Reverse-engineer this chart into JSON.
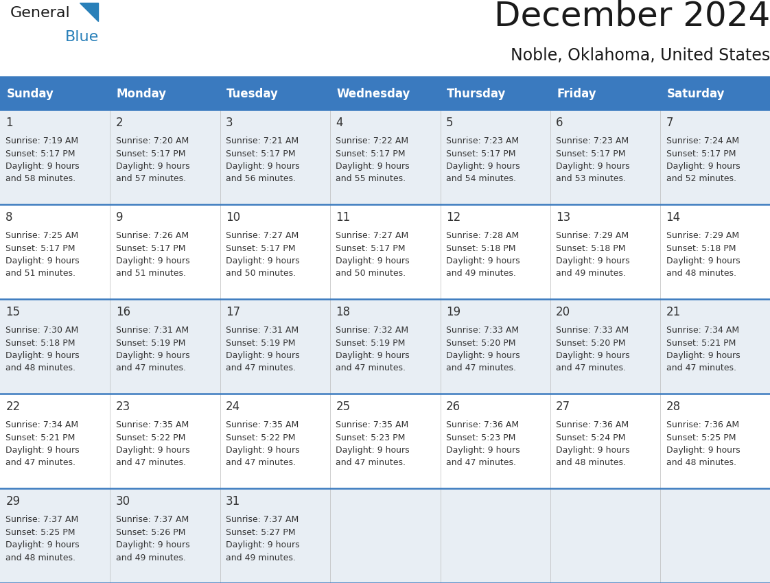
{
  "title": "December 2024",
  "subtitle": "Noble, Oklahoma, United States",
  "header_color": "#3a7abf",
  "header_text_color": "#ffffff",
  "cell_bg_even": "#e8eef4",
  "cell_bg_odd": "#ffffff",
  "border_color": "#3a7abf",
  "text_color": "#333333",
  "days_of_week": [
    "Sunday",
    "Monday",
    "Tuesday",
    "Wednesday",
    "Thursday",
    "Friday",
    "Saturday"
  ],
  "weeks": [
    [
      {
        "day": "1",
        "sunrise": "7:19 AM",
        "sunset": "5:17 PM",
        "daylight_h": "9 hours",
        "daylight_m": "and 58 minutes."
      },
      {
        "day": "2",
        "sunrise": "7:20 AM",
        "sunset": "5:17 PM",
        "daylight_h": "9 hours",
        "daylight_m": "and 57 minutes."
      },
      {
        "day": "3",
        "sunrise": "7:21 AM",
        "sunset": "5:17 PM",
        "daylight_h": "9 hours",
        "daylight_m": "and 56 minutes."
      },
      {
        "day": "4",
        "sunrise": "7:22 AM",
        "sunset": "5:17 PM",
        "daylight_h": "9 hours",
        "daylight_m": "and 55 minutes."
      },
      {
        "day": "5",
        "sunrise": "7:23 AM",
        "sunset": "5:17 PM",
        "daylight_h": "9 hours",
        "daylight_m": "and 54 minutes."
      },
      {
        "day": "6",
        "sunrise": "7:23 AM",
        "sunset": "5:17 PM",
        "daylight_h": "9 hours",
        "daylight_m": "and 53 minutes."
      },
      {
        "day": "7",
        "sunrise": "7:24 AM",
        "sunset": "5:17 PM",
        "daylight_h": "9 hours",
        "daylight_m": "and 52 minutes."
      }
    ],
    [
      {
        "day": "8",
        "sunrise": "7:25 AM",
        "sunset": "5:17 PM",
        "daylight_h": "9 hours",
        "daylight_m": "and 51 minutes."
      },
      {
        "day": "9",
        "sunrise": "7:26 AM",
        "sunset": "5:17 PM",
        "daylight_h": "9 hours",
        "daylight_m": "and 51 minutes."
      },
      {
        "day": "10",
        "sunrise": "7:27 AM",
        "sunset": "5:17 PM",
        "daylight_h": "9 hours",
        "daylight_m": "and 50 minutes."
      },
      {
        "day": "11",
        "sunrise": "7:27 AM",
        "sunset": "5:17 PM",
        "daylight_h": "9 hours",
        "daylight_m": "and 50 minutes."
      },
      {
        "day": "12",
        "sunrise": "7:28 AM",
        "sunset": "5:18 PM",
        "daylight_h": "9 hours",
        "daylight_m": "and 49 minutes."
      },
      {
        "day": "13",
        "sunrise": "7:29 AM",
        "sunset": "5:18 PM",
        "daylight_h": "9 hours",
        "daylight_m": "and 49 minutes."
      },
      {
        "day": "14",
        "sunrise": "7:29 AM",
        "sunset": "5:18 PM",
        "daylight_h": "9 hours",
        "daylight_m": "and 48 minutes."
      }
    ],
    [
      {
        "day": "15",
        "sunrise": "7:30 AM",
        "sunset": "5:18 PM",
        "daylight_h": "9 hours",
        "daylight_m": "and 48 minutes."
      },
      {
        "day": "16",
        "sunrise": "7:31 AM",
        "sunset": "5:19 PM",
        "daylight_h": "9 hours",
        "daylight_m": "and 47 minutes."
      },
      {
        "day": "17",
        "sunrise": "7:31 AM",
        "sunset": "5:19 PM",
        "daylight_h": "9 hours",
        "daylight_m": "and 47 minutes."
      },
      {
        "day": "18",
        "sunrise": "7:32 AM",
        "sunset": "5:19 PM",
        "daylight_h": "9 hours",
        "daylight_m": "and 47 minutes."
      },
      {
        "day": "19",
        "sunrise": "7:33 AM",
        "sunset": "5:20 PM",
        "daylight_h": "9 hours",
        "daylight_m": "and 47 minutes."
      },
      {
        "day": "20",
        "sunrise": "7:33 AM",
        "sunset": "5:20 PM",
        "daylight_h": "9 hours",
        "daylight_m": "and 47 minutes."
      },
      {
        "day": "21",
        "sunrise": "7:34 AM",
        "sunset": "5:21 PM",
        "daylight_h": "9 hours",
        "daylight_m": "and 47 minutes."
      }
    ],
    [
      {
        "day": "22",
        "sunrise": "7:34 AM",
        "sunset": "5:21 PM",
        "daylight_h": "9 hours",
        "daylight_m": "and 47 minutes."
      },
      {
        "day": "23",
        "sunrise": "7:35 AM",
        "sunset": "5:22 PM",
        "daylight_h": "9 hours",
        "daylight_m": "and 47 minutes."
      },
      {
        "day": "24",
        "sunrise": "7:35 AM",
        "sunset": "5:22 PM",
        "daylight_h": "9 hours",
        "daylight_m": "and 47 minutes."
      },
      {
        "day": "25",
        "sunrise": "7:35 AM",
        "sunset": "5:23 PM",
        "daylight_h": "9 hours",
        "daylight_m": "and 47 minutes."
      },
      {
        "day": "26",
        "sunrise": "7:36 AM",
        "sunset": "5:23 PM",
        "daylight_h": "9 hours",
        "daylight_m": "and 47 minutes."
      },
      {
        "day": "27",
        "sunrise": "7:36 AM",
        "sunset": "5:24 PM",
        "daylight_h": "9 hours",
        "daylight_m": "and 48 minutes."
      },
      {
        "day": "28",
        "sunrise": "7:36 AM",
        "sunset": "5:25 PM",
        "daylight_h": "9 hours",
        "daylight_m": "and 48 minutes."
      }
    ],
    [
      {
        "day": "29",
        "sunrise": "7:37 AM",
        "sunset": "5:25 PM",
        "daylight_h": "9 hours",
        "daylight_m": "and 48 minutes."
      },
      {
        "day": "30",
        "sunrise": "7:37 AM",
        "sunset": "5:26 PM",
        "daylight_h": "9 hours",
        "daylight_m": "and 49 minutes."
      },
      {
        "day": "31",
        "sunrise": "7:37 AM",
        "sunset": "5:27 PM",
        "daylight_h": "9 hours",
        "daylight_m": "and 49 minutes."
      },
      null,
      null,
      null,
      null
    ]
  ],
  "logo_general_color": "#1a1a1a",
  "logo_blue_color": "#2980b9",
  "logo_triangle_color": "#2980b9",
  "title_fontsize": 36,
  "subtitle_fontsize": 17,
  "header_fontsize": 12,
  "day_num_fontsize": 12,
  "cell_text_fontsize": 9
}
